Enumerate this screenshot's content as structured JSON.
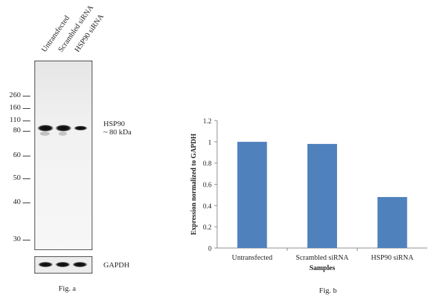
{
  "blot": {
    "lanes": [
      "Untransfected",
      "Scrambled siRNA",
      "HSP90 siRNA"
    ],
    "markers": [
      "260",
      "160",
      "110",
      "80",
      "60",
      "50",
      "40",
      "30"
    ],
    "target_label": "HSP90",
    "target_size": "~ 80 kDa",
    "control_label": "GAPDH",
    "caption": "Fig. a"
  },
  "figure_b": {
    "caption": "Fig. b"
  },
  "chart_data": {
    "type": "bar",
    "categories": [
      "Untransfected",
      "Scrambled siRNA",
      "HSP90 siRNA"
    ],
    "values": [
      1.0,
      0.98,
      0.48
    ],
    "xlabel": "Samples",
    "ylabel": "Expression normalized to GAPDH",
    "ylim": [
      0,
      1.2
    ],
    "yticks": [
      "0",
      "0.2",
      "0.4",
      "0.6",
      "0.8",
      "1",
      "1.2"
    ],
    "grid": false,
    "bar_color": "#4f81bd"
  }
}
